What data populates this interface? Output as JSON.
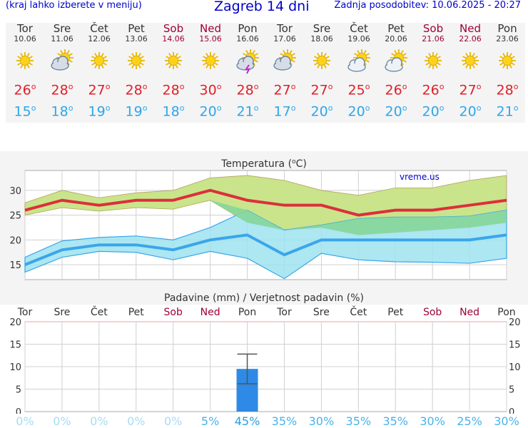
{
  "header": {
    "left_note": "(kraj lahko izberete v meniju)",
    "title": "Zagreb 14 dni",
    "updated": "Zadnja posodobitev: 10.06.2025 - 20:27"
  },
  "days": [
    {
      "name": "Tor",
      "date": "10.06",
      "weekend": false,
      "icon": "sun-icon",
      "tmax": "26",
      "tmin": "15"
    },
    {
      "name": "Sre",
      "date": "11.06",
      "weekend": false,
      "icon": "cloudy-sun-icon",
      "tmax": "28",
      "tmin": "18"
    },
    {
      "name": "Čet",
      "date": "12.06",
      "weekend": false,
      "icon": "sun-icon",
      "tmax": "27",
      "tmin": "19"
    },
    {
      "name": "Pet",
      "date": "13.06",
      "weekend": false,
      "icon": "sun-icon",
      "tmax": "28",
      "tmin": "19"
    },
    {
      "name": "Sob",
      "date": "14.06",
      "weekend": true,
      "icon": "sun-icon",
      "tmax": "28",
      "tmin": "18"
    },
    {
      "name": "Ned",
      "date": "15.06",
      "weekend": true,
      "icon": "sun-icon",
      "tmax": "30",
      "tmin": "20"
    },
    {
      "name": "Pon",
      "date": "16.06",
      "weekend": false,
      "icon": "thunderstorm-sun-icon",
      "tmax": "28",
      "tmin": "21"
    },
    {
      "name": "Tor",
      "date": "17.06",
      "weekend": false,
      "icon": "cloudy-sun-icon",
      "tmax": "27",
      "tmin": "17"
    },
    {
      "name": "Sre",
      "date": "18.06",
      "weekend": false,
      "icon": "sun-icon",
      "tmax": "27",
      "tmin": "20"
    },
    {
      "name": "Čet",
      "date": "19.06",
      "weekend": false,
      "icon": "partly-cloudy-sun-icon",
      "tmax": "25",
      "tmin": "20"
    },
    {
      "name": "Pet",
      "date": "20.06",
      "weekend": false,
      "icon": "partly-cloudy-sun-icon",
      "tmax": "26",
      "tmin": "20"
    },
    {
      "name": "Sob",
      "date": "21.06",
      "weekend": true,
      "icon": "sun-icon",
      "tmax": "26",
      "tmin": "20"
    },
    {
      "name": "Ned",
      "date": "22.06",
      "weekend": true,
      "icon": "sun-icon",
      "tmax": "27",
      "tmin": "20"
    },
    {
      "name": "Pon",
      "date": "23.06",
      "weekend": false,
      "icon": "sun-icon",
      "tmax": "28",
      "tmin": "21"
    }
  ],
  "deg": "o",
  "colors": {
    "max_line": "#dc2f3c",
    "min_line": "#3aa6ea",
    "max_band": "#c9e48a",
    "min_band": "#9ee3f0",
    "overlap": "#86d69a",
    "rain_bar": "#2e8ae6",
    "header_blue": "#0000cc",
    "weekend": "#a0003a",
    "prob_low": "#a8dcf4",
    "prob_high": "#2a9ee0"
  },
  "chart_data": [
    {
      "type": "line",
      "title": "Temperatura (",
      "title_unit": "C",
      "title_end": ")",
      "watermark": "vreme.us",
      "ylim": [
        12,
        34
      ],
      "yticks": [
        "15",
        "20",
        "25",
        "30"
      ],
      "series": [
        {
          "values": [
            26,
            28,
            27,
            28,
            28,
            30,
            28,
            27,
            27,
            25,
            26,
            26,
            27,
            28
          ]
        },
        {
          "values": [
            15,
            18,
            19,
            19,
            18,
            20,
            21,
            17,
            20,
            20,
            20,
            20,
            20,
            21
          ]
        }
      ],
      "max_band_upper": [
        27.5,
        30,
        28.5,
        29.5,
        30,
        32.5,
        33,
        32,
        30,
        29,
        30.5,
        30.5,
        32,
        33
      ],
      "max_band_lower": [
        25,
        26.5,
        25.8,
        26.5,
        26.2,
        28,
        23.5,
        22,
        22.5,
        21,
        21.5,
        22,
        22.5,
        23.5
      ],
      "min_band_upper": [
        16.5,
        19.8,
        20.5,
        20.8,
        20,
        22.5,
        26,
        22,
        23,
        24.3,
        24.6,
        24.6,
        24.8,
        26
      ],
      "min_band_lower": [
        13.5,
        16.5,
        17.7,
        17.5,
        16,
        17.7,
        16.3,
        12.2,
        17.3,
        16,
        15.6,
        15.5,
        15.3,
        16.3
      ]
    },
    {
      "type": "bar",
      "title": "Padavine (mm) / Verjetnost padavin (%)",
      "categories": [
        "Tor",
        "Sre",
        "Čet",
        "Pet",
        "Sob",
        "Ned",
        "Pon",
        "Tor",
        "Sre",
        "Čet",
        "Pet",
        "Sob",
        "Ned",
        "Pon"
      ],
      "weekend": [
        false,
        false,
        false,
        false,
        true,
        true,
        false,
        false,
        false,
        false,
        false,
        true,
        true,
        false
      ],
      "ylim": [
        0,
        20
      ],
      "yticks": [
        "0",
        "5",
        "10",
        "15",
        "20"
      ],
      "values": [
        0,
        0,
        0,
        0,
        0,
        0,
        9.5,
        0,
        0,
        0,
        0,
        0,
        0,
        0
      ],
      "error_low": [
        null,
        null,
        null,
        null,
        null,
        null,
        6.2,
        null,
        null,
        null,
        null,
        null,
        null,
        null
      ],
      "error_high": [
        null,
        null,
        null,
        null,
        null,
        null,
        12.8,
        null,
        null,
        null,
        null,
        null,
        null,
        null
      ],
      "probabilities": [
        "0%",
        "0%",
        "0%",
        "0%",
        "0%",
        "5%",
        "45%",
        "35%",
        "30%",
        "35%",
        "35%",
        "30%",
        "25%",
        "30%"
      ],
      "prob_values": [
        0,
        0,
        0,
        0,
        0,
        5,
        45,
        35,
        30,
        35,
        35,
        30,
        25,
        30
      ]
    }
  ]
}
